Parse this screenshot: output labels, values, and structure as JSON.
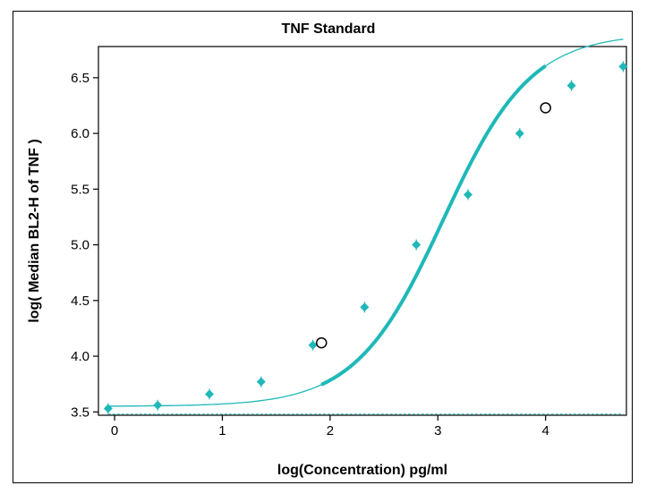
{
  "chart_data": {
    "type": "scatter",
    "title": "TNF Standard",
    "xlabel": "log(Concentration) pg/ml",
    "ylabel": "log( Median BL2-H of TNF )",
    "xlim": [
      -0.15,
      4.75
    ],
    "ylim": [
      3.47,
      6.78
    ],
    "x_ticks": [
      0,
      1,
      2,
      3,
      4
    ],
    "y_ticks": [
      3.5,
      4.0,
      4.5,
      5.0,
      5.5,
      6.0,
      6.5
    ],
    "x_tick_labels": [
      "0",
      "1",
      "2",
      "3",
      "4"
    ],
    "y_tick_labels": [
      "3.5",
      "4.0",
      "4.5",
      "5.0",
      "5.5",
      "6.0",
      "6.5"
    ],
    "grid": false,
    "colors": {
      "series": "#1fb8b8",
      "open_marker": "#000000",
      "axis": "#000000"
    },
    "points": [
      {
        "x": -0.06,
        "y": 3.53
      },
      {
        "x": 0.4,
        "y": 3.56
      },
      {
        "x": 0.88,
        "y": 3.66
      },
      {
        "x": 1.36,
        "y": 3.77
      },
      {
        "x": 1.84,
        "y": 4.1
      },
      {
        "x": 2.32,
        "y": 4.44
      },
      {
        "x": 2.8,
        "y": 5.0
      },
      {
        "x": 3.28,
        "y": 5.45
      },
      {
        "x": 3.76,
        "y": 6.0
      },
      {
        "x": 4.24,
        "y": 6.43
      },
      {
        "x": 4.72,
        "y": 6.6
      }
    ],
    "fit_curve": {
      "model": "4PL",
      "bottom": 3.55,
      "top": 6.9,
      "ec50_log": 3.05,
      "hill": 1.07,
      "x_range": [
        -0.06,
        4.72
      ]
    },
    "range_markers": [
      {
        "x": 1.92,
        "y": 4.12
      },
      {
        "x": 4.0,
        "y": 6.23
      }
    ],
    "baseline": {
      "y": 3.48,
      "style": "dashed"
    }
  }
}
